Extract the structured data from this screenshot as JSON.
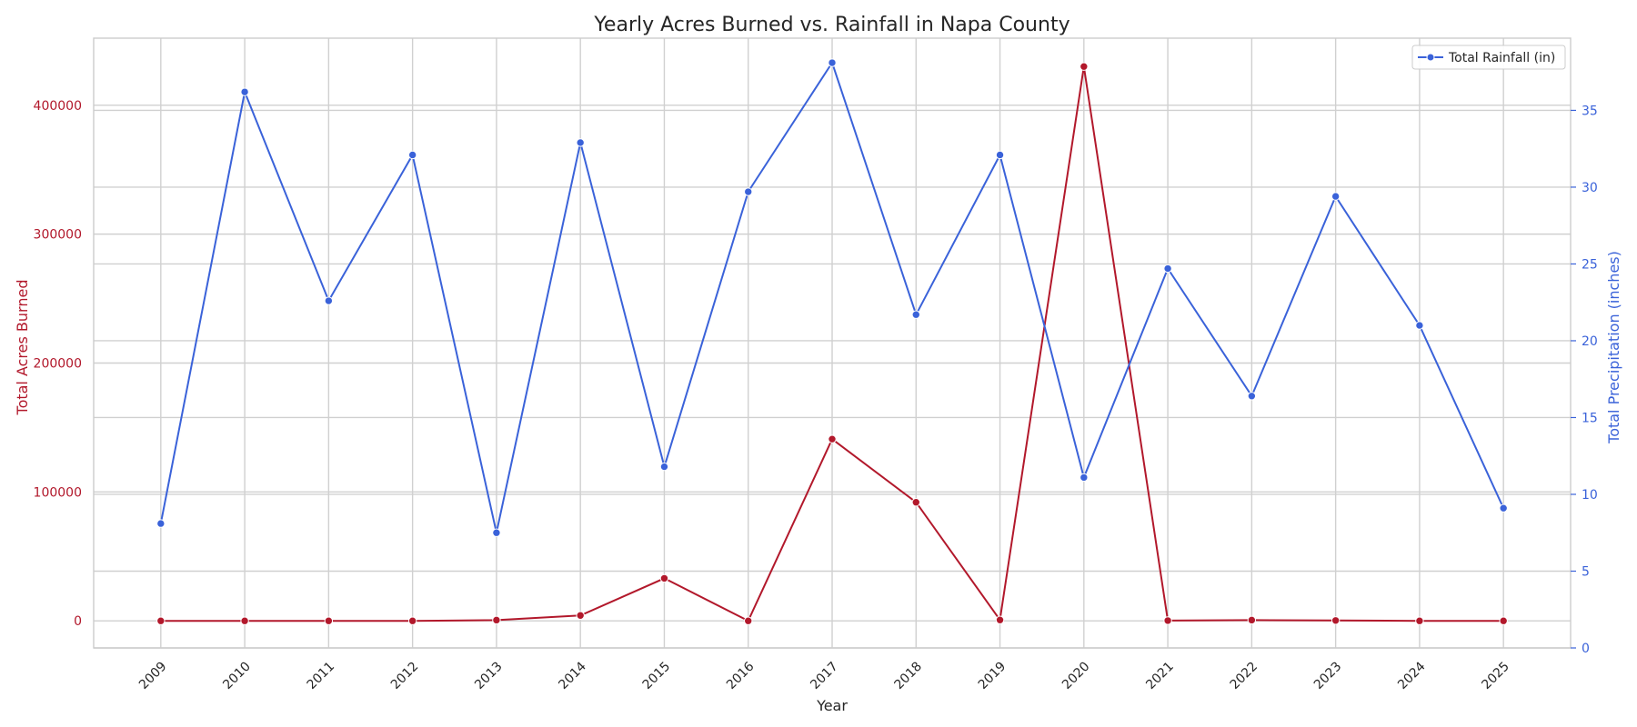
{
  "chart_data": {
    "type": "line",
    "title": "Yearly Acres Burned vs. Rainfall in Napa County",
    "xlabel": "Year",
    "y_left_label": "Total Acres Burned",
    "y_right_label": "Total Precipitation (inches)",
    "x": [
      "2009",
      "2010",
      "2011",
      "2012",
      "2013",
      "2014",
      "2015",
      "2016",
      "2017",
      "2018",
      "2019",
      "2020",
      "2021",
      "2022",
      "2023",
      "2024",
      "2025"
    ],
    "y_left_ticks": [
      0,
      100000,
      200000,
      300000,
      400000
    ],
    "y_left_tick_labels": [
      "0",
      "100000",
      "200000",
      "300000",
      "400000"
    ],
    "y_right_ticks": [
      0,
      5,
      10,
      15,
      20,
      25,
      30,
      35
    ],
    "y_right_tick_labels": [
      "0",
      "5",
      "10",
      "15",
      "20",
      "25",
      "30",
      "35"
    ],
    "ylim_left": [
      -21000,
      452000
    ],
    "ylim_right": [
      0,
      39.7
    ],
    "grid": true,
    "legend_position": "top-right",
    "series": [
      {
        "name": "Total Acres Burned",
        "axis": "left",
        "color": "#b2182b",
        "values": [
          0,
          0,
          0,
          0,
          600,
          4200,
          33000,
          0,
          141000,
          92000,
          700,
          430000,
          200,
          600,
          300,
          0,
          0
        ]
      },
      {
        "name": "Total Rainfall (in)",
        "axis": "right",
        "color": "#3a62d9",
        "values": [
          8.1,
          36.2,
          22.6,
          32.1,
          7.5,
          32.9,
          11.8,
          29.7,
          38.1,
          21.7,
          32.1,
          11.1,
          24.7,
          16.4,
          29.4,
          21.0,
          9.1
        ]
      }
    ],
    "legend_entries": [
      {
        "label": "Total Rainfall (in)",
        "color": "#3a62d9"
      }
    ]
  }
}
